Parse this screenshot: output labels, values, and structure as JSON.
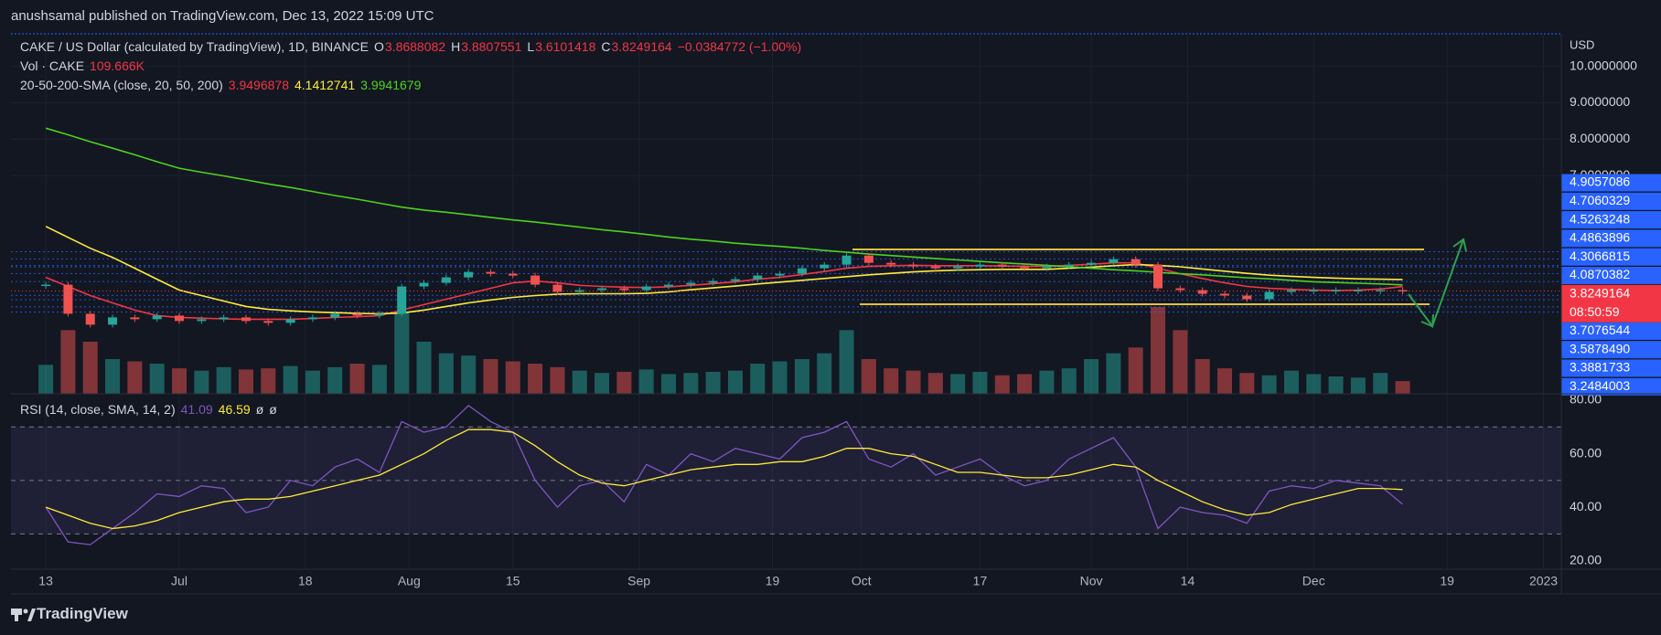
{
  "header": {
    "publisher": "anushsamal published on TradingView.com, Dec 13, 2022 15:09 UTC"
  },
  "chart_data": {
    "type": "candlestick",
    "title": "CAKE / US Dollar (calculated by TradingView), 1D, BINANCE",
    "legend_ohlc": [
      {
        "key": "O",
        "value": 3.8688082
      },
      {
        "key": "H",
        "value": 3.8807551
      },
      {
        "key": "L",
        "value": 3.6101418
      },
      {
        "key": "C",
        "value": 3.8249164
      }
    ],
    "change": "−0.0384772 (−1.00%)",
    "volume_name": "Vol · CAKE",
    "volume_label": "109.666K",
    "up_color": "#26a69a",
    "down_color": "#ef5350",
    "x": [
      0,
      3,
      6,
      9,
      12,
      15,
      18,
      21,
      24,
      27,
      30,
      33,
      36,
      39,
      42,
      45,
      48,
      51,
      54,
      57,
      60,
      63,
      66,
      69,
      72,
      75,
      78,
      81,
      84,
      87,
      90,
      93,
      96,
      99,
      102,
      105,
      108,
      111,
      114,
      117,
      120,
      123,
      126,
      129,
      132,
      135,
      138,
      141,
      144,
      147,
      150,
      153,
      156,
      159,
      162,
      165,
      168,
      171,
      174,
      177,
      180,
      183
    ],
    "close": [
      4.0,
      3.2,
      2.9,
      3.1,
      3.05,
      3.15,
      3.0,
      3.05,
      3.1,
      3.0,
      2.95,
      3.05,
      3.1,
      3.2,
      3.15,
      3.2,
      3.95,
      4.05,
      4.2,
      4.35,
      4.3,
      4.25,
      4.0,
      3.8,
      3.85,
      3.9,
      3.85,
      3.95,
      4.0,
      4.05,
      4.1,
      4.15,
      4.25,
      4.3,
      4.45,
      4.55,
      4.8,
      4.6,
      4.55,
      4.5,
      4.45,
      4.5,
      4.55,
      4.5,
      4.45,
      4.5,
      4.55,
      4.6,
      4.7,
      4.55,
      3.9,
      3.85,
      3.75,
      3.7,
      3.6,
      3.8,
      3.85,
      3.85,
      3.85,
      3.85,
      3.85,
      3.8249164
    ],
    "volume": [
      250,
      550,
      450,
      300,
      280,
      260,
      220,
      200,
      230,
      210,
      220,
      240,
      200,
      230,
      260,
      250,
      700,
      450,
      350,
      330,
      300,
      280,
      260,
      230,
      200,
      180,
      190,
      210,
      170,
      180,
      190,
      200,
      260,
      280,
      300,
      350,
      550,
      300,
      220,
      200,
      180,
      170,
      190,
      160,
      170,
      200,
      220,
      300,
      350,
      400,
      750,
      550,
      300,
      220,
      180,
      160,
      200,
      170,
      150,
      140,
      180,
      109.666
    ],
    "sma": {
      "name": "20-50-200-SMA (close, 20, 50, 200)",
      "lines": [
        {
          "color": "#f23645",
          "values": [
            4.2,
            3.95,
            3.7,
            3.5,
            3.3,
            3.15,
            3.1,
            3.08,
            3.06,
            3.05,
            3.05,
            3.05,
            3.07,
            3.1,
            3.12,
            3.15,
            3.3,
            3.45,
            3.6,
            3.75,
            3.9,
            4.05,
            4.1,
            4.05,
            3.98,
            3.95,
            3.93,
            3.92,
            3.94,
            3.98,
            4.03,
            4.08,
            4.15,
            4.2,
            4.28,
            4.36,
            4.45,
            4.5,
            4.52,
            4.53,
            4.52,
            4.52,
            4.52,
            4.51,
            4.5,
            4.5,
            4.53,
            4.56,
            4.6,
            4.6,
            4.45,
            4.3,
            4.17,
            4.05,
            3.95,
            3.9,
            3.87,
            3.85,
            3.84,
            3.85,
            3.88,
            3.9496878
          ]
        },
        {
          "color": "#ffeb3b",
          "values": [
            5.6,
            5.3,
            5.0,
            4.75,
            4.45,
            4.15,
            3.85,
            3.7,
            3.55,
            3.4,
            3.32,
            3.28,
            3.25,
            3.23,
            3.21,
            3.2,
            3.22,
            3.3,
            3.4,
            3.5,
            3.58,
            3.65,
            3.7,
            3.74,
            3.75,
            3.75,
            3.75,
            3.76,
            3.8,
            3.86,
            3.91,
            3.96,
            4.02,
            4.07,
            4.12,
            4.17,
            4.22,
            4.27,
            4.31,
            4.35,
            4.38,
            4.4,
            4.41,
            4.42,
            4.42,
            4.42,
            4.45,
            4.48,
            4.52,
            4.55,
            4.53,
            4.49,
            4.43,
            4.37,
            4.31,
            4.26,
            4.23,
            4.2,
            4.18,
            4.16,
            4.15,
            4.1412741
          ]
        },
        {
          "color": "#4cd21e",
          "values": [
            8.3,
            8.12,
            7.93,
            7.75,
            7.57,
            7.38,
            7.2,
            7.09,
            6.99,
            6.88,
            6.77,
            6.67,
            6.56,
            6.45,
            6.35,
            6.24,
            6.13,
            6.05,
            5.99,
            5.92,
            5.85,
            5.78,
            5.72,
            5.65,
            5.58,
            5.51,
            5.45,
            5.38,
            5.31,
            5.25,
            5.2,
            5.14,
            5.09,
            5.05,
            5.0,
            4.94,
            4.89,
            4.84,
            4.8,
            4.76,
            4.72,
            4.68,
            4.64,
            4.6,
            4.57,
            4.53,
            4.49,
            4.45,
            4.41,
            4.38,
            4.34,
            4.3,
            4.27,
            4.23,
            4.19,
            4.16,
            4.12,
            4.08,
            4.06,
            4.04,
            4.02,
            3.9941679
          ]
        }
      ]
    },
    "xlim": [
      -4.7,
      204.4
    ],
    "xticks": [
      {
        "value": 0,
        "label": "13"
      },
      {
        "value": 18,
        "label": "Jul"
      },
      {
        "value": 35,
        "label": "18"
      },
      {
        "value": 49,
        "label": "Aug"
      },
      {
        "value": 63,
        "label": "15"
      },
      {
        "value": 80,
        "label": "Sep"
      },
      {
        "value": 98,
        "label": "19"
      },
      {
        "value": 110,
        "label": "Oct"
      },
      {
        "value": 126,
        "label": "17"
      },
      {
        "value": 141,
        "label": "Nov"
      },
      {
        "value": 154,
        "label": "14"
      },
      {
        "value": 171,
        "label": "Dec"
      },
      {
        "value": 189,
        "label": "19"
      },
      {
        "value": 202,
        "label": "2023"
      }
    ],
    "ylim": [
      1.0,
      10.87
    ],
    "yticks": [
      {
        "value": 10,
        "label": "10.0000000"
      },
      {
        "value": 9,
        "label": "9.0000000"
      },
      {
        "value": 8,
        "label": "8.0000000"
      },
      {
        "value": 7,
        "label": "7.0000000"
      }
    ],
    "y_unit": "USD",
    "price_line_color": "#2962ff",
    "current_color": "#f23645",
    "countdown": "08:50:59",
    "price_lines": [
      4.9057086,
      4.7060329,
      4.5263248,
      4.4863896,
      4.3066815,
      4.0870382,
      3.7076544,
      {
        "value": 3.587849,
        "label": "3.5878490"
      },
      3.3881733,
      3.2484003
    ]
  },
  "rsi": {
    "name": "RSI (14, close, SMA, 14, 2)",
    "color": "#7e57c2",
    "sma_color": "#ffeb3b",
    "flags": [
      "ø",
      "ø"
    ],
    "values": [
      40,
      27,
      26,
      32,
      38,
      45,
      44,
      48,
      47,
      38,
      40,
      50,
      48,
      55,
      58,
      53,
      72,
      68,
      70,
      78,
      72,
      68,
      50,
      40,
      48,
      50,
      42,
      56,
      52,
      60,
      57,
      62,
      60,
      58,
      66,
      68,
      72,
      58,
      55,
      60,
      52,
      55,
      58,
      52,
      48,
      50,
      58,
      62,
      66,
      55,
      32,
      40,
      38,
      37,
      34,
      46,
      48,
      47,
      50,
      49,
      48,
      41.09
    ],
    "sma_values": [
      40,
      37,
      34,
      32,
      33,
      35,
      38,
      40,
      42,
      43,
      43,
      44,
      46,
      48,
      50,
      52,
      56,
      60,
      65,
      69,
      69,
      68,
      63,
      57,
      52,
      49,
      48,
      50,
      52,
      54,
      55,
      56,
      56,
      57,
      57,
      59,
      62,
      62,
      60,
      59,
      56,
      53,
      53,
      52,
      51,
      51,
      52,
      54,
      56,
      55,
      50,
      46,
      42,
      39,
      37,
      38,
      41,
      43,
      45,
      47,
      47,
      46.59
    ],
    "ylim": [
      16.8,
      82.4
    ],
    "yticks": [
      {
        "value": 80,
        "label": "80.00"
      },
      {
        "value": 60,
        "label": "60.00"
      },
      {
        "value": 40,
        "label": "40.00"
      },
      {
        "value": 20,
        "label": "20.00"
      }
    ],
    "bands": [
      70,
      50,
      30
    ]
  },
  "footer": {
    "brand": "TradingView"
  }
}
